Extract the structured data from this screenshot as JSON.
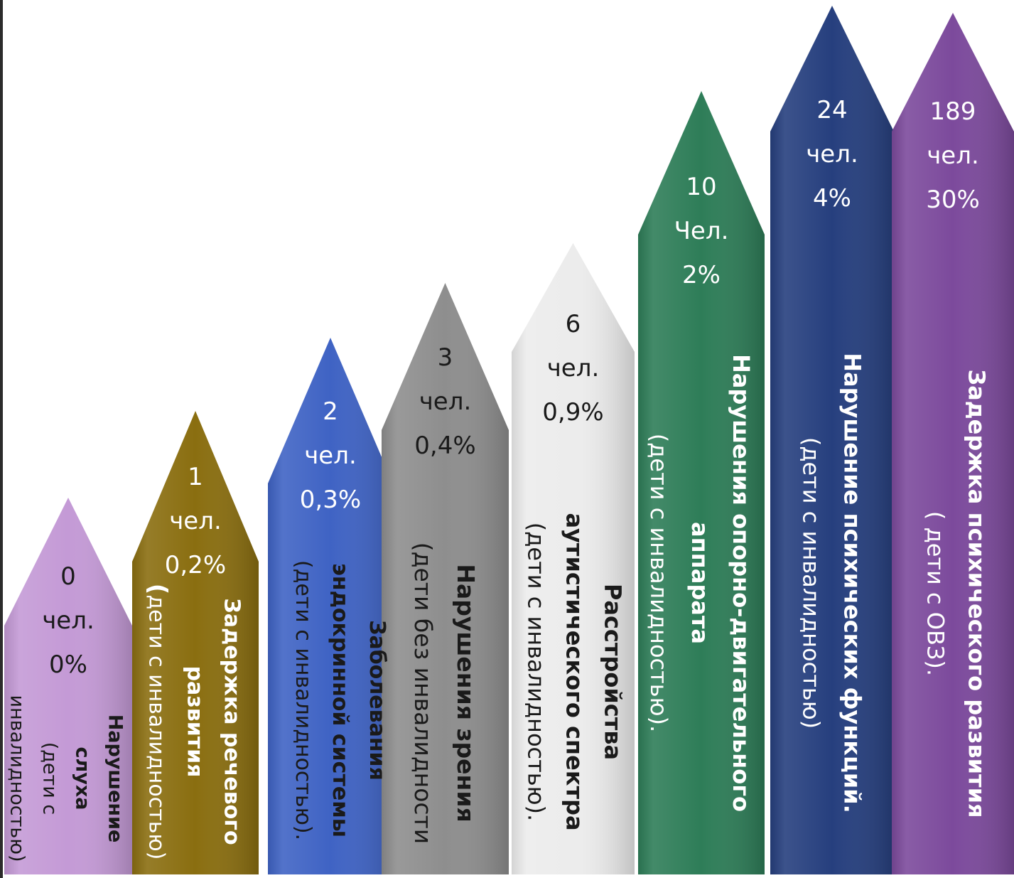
{
  "chart_data": {
    "type": "bar",
    "categories": [
      {
        "lines": [
          "Нарушение",
          "слуха"
        ],
        "note_lines": [
          "(дети с",
          "инвалидностью)"
        ]
      },
      {
        "lines": [
          "Задержка речевого",
          "развития"
        ],
        "note_prefix": "(",
        "note_lines": [
          "дети с инвалидностью)"
        ]
      },
      {
        "lines": [
          "Заболевания",
          "эндокринной системы"
        ],
        "note_lines": [
          "(дети с инвалидностью)."
        ]
      },
      {
        "lines": [
          "Нарушения зрения"
        ],
        "note_lines": [
          "(дети без инвалидности"
        ]
      },
      {
        "lines": [
          "Расстройства",
          "аутистического спектра"
        ],
        "note_lines": [
          "(дети с инвалидностью)."
        ]
      },
      {
        "lines": [
          "Нарушения опорно-двигательного",
          "аппарата"
        ],
        "note_lines": [
          "(дети с инвалидностью)."
        ]
      },
      {
        "lines": [
          "Нарушение психических функций."
        ],
        "note_lines": [
          "(дети с инвалидностью)"
        ]
      },
      {
        "lines": [
          "Задержка психического развития"
        ],
        "note_lines": [
          "( дети с ОВЗ)."
        ]
      }
    ],
    "values": [
      0,
      1,
      2,
      3,
      6,
      10,
      24,
      189
    ],
    "unit_labels": [
      "чел.",
      "чел.",
      "чел.",
      "чел.",
      "чел.",
      "Чел.",
      "чел.",
      "чел."
    ],
    "percent_labels": [
      "0%",
      "0,2%",
      "0,3%",
      "0,4%",
      "0,9%",
      "2%",
      "4%",
      "30%"
    ],
    "colors": [
      "#c49ad6",
      "#8a6e10",
      "#3f63c4",
      "#8e8e8e",
      "#ececec",
      "#2e7d58",
      "#263f7e",
      "#7c4a9c"
    ],
    "text_colors": [
      "#1a1a1a",
      "#ffffff",
      "#ffffff",
      "#1a1a1a",
      "#1a1a1a",
      "#ffffff",
      "#ffffff",
      "#ffffff"
    ],
    "label_colors": [
      "#1a1a1a",
      "#ffffff",
      "#1a1a1a",
      "#1a1a1a",
      "#1a1a1a",
      "#ffffff",
      "#ffffff",
      "#ffffff"
    ]
  }
}
